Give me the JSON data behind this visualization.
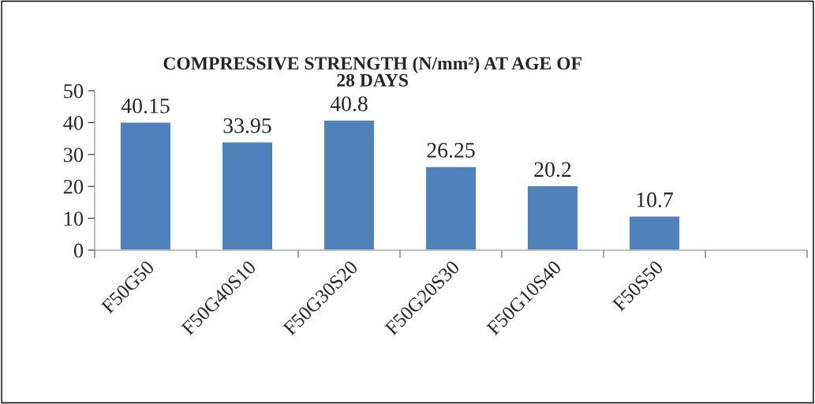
{
  "chart_data": {
    "type": "bar",
    "title": "COMPRESSIVE STRENGTH (N/mm²) AT AGE OF\n28 DAYS",
    "categories": [
      "F50G50",
      "F50G40S10",
      "F50G30S20",
      "F50G20S30",
      "F50G10S40",
      "F50S50",
      null
    ],
    "values": [
      40.15,
      33.95,
      40.8,
      26.25,
      20.2,
      10.7,
      null
    ],
    "color": "#4f81bd",
    "ylim": [
      0,
      50
    ],
    "yticks": [
      0,
      10,
      20,
      30,
      40,
      50
    ],
    "grid": false,
    "data_labels": true
  }
}
